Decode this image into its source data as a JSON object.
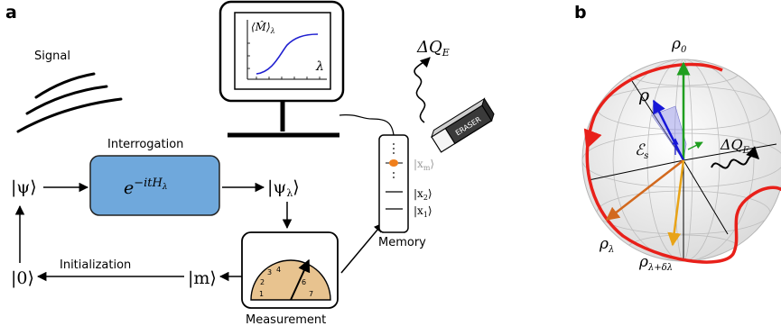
{
  "panels": {
    "a": "a",
    "b": "b"
  },
  "diagram_a": {
    "signal_label": "Signal",
    "interrogation_label": "Interrogation",
    "operator": "e^{−itH_λ}",
    "operator_base": "e",
    "operator_exp": "−itH",
    "operator_sub": "λ",
    "ket_psi": "|ψ⟩",
    "ket_psi_lambda_main": "|ψ",
    "ket_psi_lambda_sub": "λ",
    "ket_close": "⟩",
    "ket_zero": "|0⟩",
    "ket_m": "|m⟩",
    "initialization_label": "Initialization",
    "measurement_label": "Measurement",
    "memory_label": "Memory",
    "memory_states": [
      "|x_m⟩",
      "|x_2⟩",
      "|x_1⟩"
    ],
    "mem_xm_main": "|x",
    "mem_xm_sub": "m",
    "mem_x2_main": "|x",
    "mem_x2_sub": "2",
    "mem_x1_main": "|x",
    "mem_x1_sub": "1",
    "eraser_label": "ERASER",
    "delta_q_main": "ΔQ",
    "delta_q_sub": "E",
    "monitor_ylabel_main": "⟨M̂⟩",
    "monitor_ylabel_sub": "λ",
    "monitor_xlabel": "λ",
    "gauge_ticks": [
      "1",
      "2",
      "3",
      "4",
      "6",
      "7"
    ]
  },
  "diagram_b": {
    "rho0_main": "ρ",
    "rho0_sub": "0",
    "rho": "ρ",
    "channel_main": "ℰ",
    "channel_sub": "s",
    "delta_q_main": "ΔQ",
    "delta_q_sub": "E",
    "rho_lambda_main": "ρ",
    "rho_lambda_sub": "λ",
    "rho_lambda_dl_main": "ρ",
    "rho_lambda_dl_sub": "λ+δλ"
  },
  "colors": {
    "box_fill": "#6fa8dc",
    "gauge_fill": "#e8c38f",
    "trajectory": "#e8201a",
    "rho0_arrow": "#1f9e1f",
    "rho_arrow": "#1717d8",
    "rho_lambda_arrow": "#d2691e",
    "rho_lambda_dl_arrow": "#e8a317",
    "memory_dot": "#f07f1c"
  }
}
